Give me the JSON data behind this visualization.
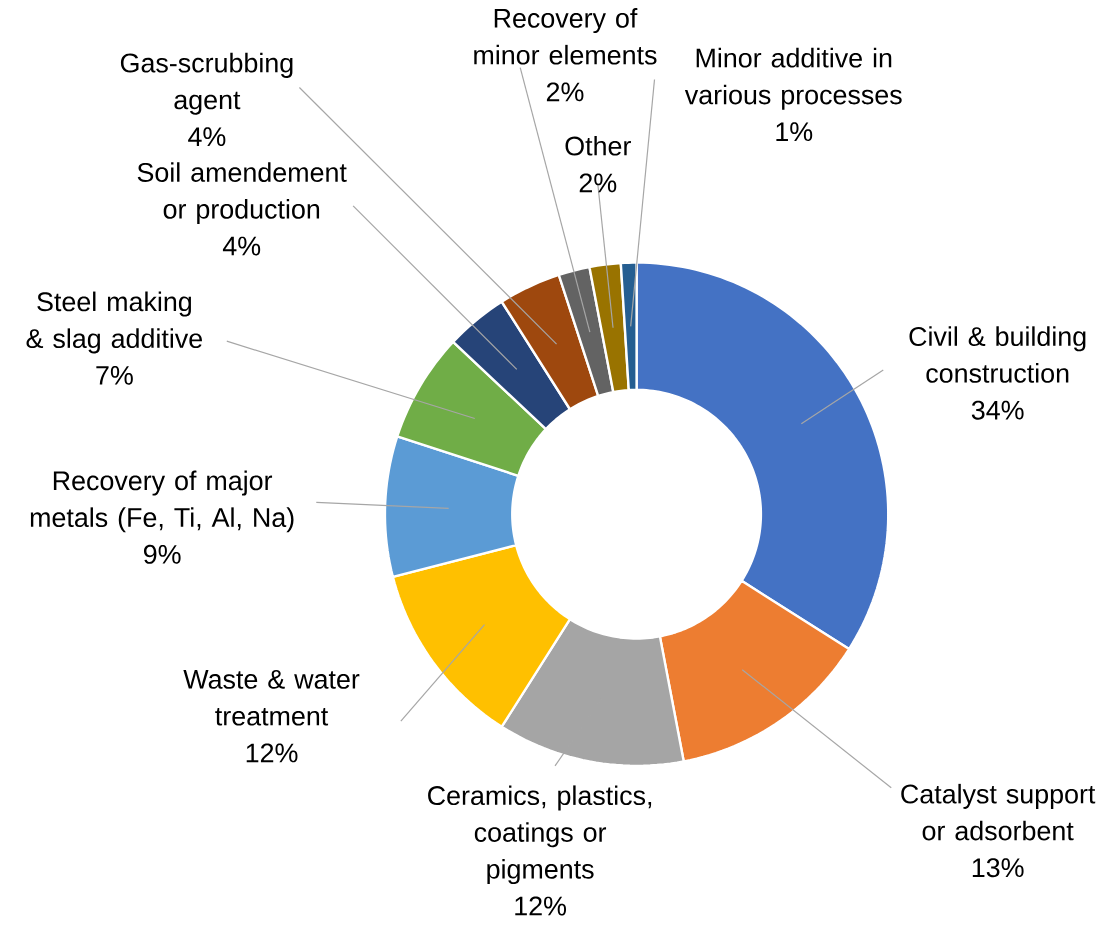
{
  "chart_data": {
    "type": "donut",
    "categories": [
      "Civil & building construction",
      "Catalyst support or adsorbent",
      "Ceramics, plastics, coatings or pigments",
      "Waste & water treatment",
      "Recovery of major metals (Fe, Ti, Al, Na)",
      "Steel making & slag additive",
      "Soil amendement or production",
      "Gas-scrubbing agent",
      "Recovery of minor elements",
      "Other",
      "Minor additive in various processes"
    ],
    "values": [
      34,
      13,
      12,
      12,
      9,
      7,
      4,
      4,
      2,
      2,
      1
    ],
    "value_labels": [
      "34%",
      "13%",
      "12%",
      "12%",
      "9%",
      "7%",
      "4%",
      "4%",
      "2%",
      "2%",
      "1%"
    ],
    "colors": [
      "#4472c4",
      "#ed7d31",
      "#a5a5a5",
      "#ffc000",
      "#5b9bd5",
      "#70ad47",
      "#264478",
      "#9e480e",
      "#636363",
      "#997300",
      "#255e91"
    ]
  }
}
